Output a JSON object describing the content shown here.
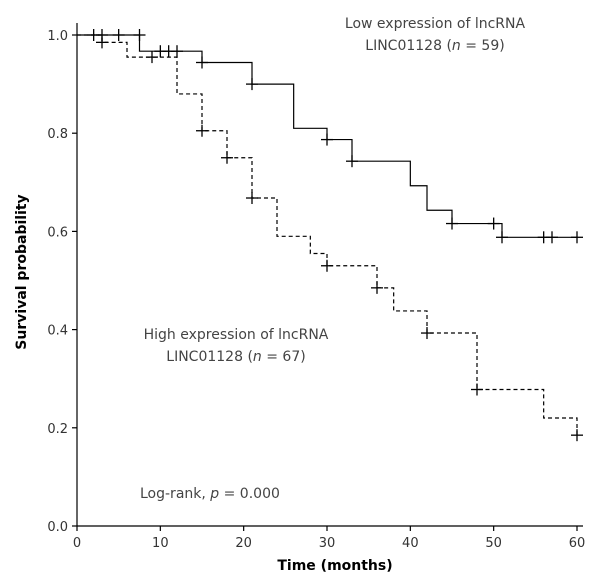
{
  "chart_data": {
    "type": "line",
    "chart_subtype": "kaplan-meier",
    "xlabel": "Time (months)",
    "ylabel": "Survival probability",
    "xlim": [
      0,
      60
    ],
    "ylim": [
      0.0,
      1.0
    ],
    "xticks": [
      0,
      10,
      20,
      30,
      40,
      50,
      60
    ],
    "yticks": [
      0.0,
      0.2,
      0.4,
      0.6,
      0.8,
      1.0
    ],
    "ytick_labels": [
      "0.0",
      "0.2",
      "0.4",
      "0.6",
      "0.8",
      "1.0"
    ],
    "grid": false,
    "series": [
      {
        "name": "Low expression of lncRNA LINC01128 (n = 59)",
        "line_style": "solid",
        "steps": [
          {
            "x": 0,
            "y": 1.0
          },
          {
            "x": 7.5,
            "y": 0.967
          },
          {
            "x": 15,
            "y": 0.944
          },
          {
            "x": 21,
            "y": 0.9
          },
          {
            "x": 26,
            "y": 0.81
          },
          {
            "x": 30,
            "y": 0.787
          },
          {
            "x": 33,
            "y": 0.743
          },
          {
            "x": 40,
            "y": 0.693
          },
          {
            "x": 42,
            "y": 0.643
          },
          {
            "x": 45,
            "y": 0.616
          },
          {
            "x": 51,
            "y": 0.588
          },
          {
            "x": 60,
            "y": 0.588
          }
        ],
        "censored": [
          {
            "x": 2,
            "y": 1.0
          },
          {
            "x": 3,
            "y": 1.0
          },
          {
            "x": 5,
            "y": 1.0
          },
          {
            "x": 7.5,
            "y": 1.0
          },
          {
            "x": 10,
            "y": 0.967
          },
          {
            "x": 11,
            "y": 0.967
          },
          {
            "x": 12,
            "y": 0.967
          },
          {
            "x": 15,
            "y": 0.944
          },
          {
            "x": 21,
            "y": 0.9
          },
          {
            "x": 30,
            "y": 0.787
          },
          {
            "x": 33,
            "y": 0.743
          },
          {
            "x": 45,
            "y": 0.616
          },
          {
            "x": 50,
            "y": 0.616
          },
          {
            "x": 51,
            "y": 0.588
          },
          {
            "x": 56,
            "y": 0.588
          },
          {
            "x": 57,
            "y": 0.588
          },
          {
            "x": 60,
            "y": 0.588
          }
        ]
      },
      {
        "name": "High expression of lncRNA LINC01128 (n = 67)",
        "line_style": "dashed",
        "steps": [
          {
            "x": 0,
            "y": 1.0
          },
          {
            "x": 3,
            "y": 0.985
          },
          {
            "x": 6,
            "y": 0.955
          },
          {
            "x": 12,
            "y": 0.88
          },
          {
            "x": 15,
            "y": 0.805
          },
          {
            "x": 18,
            "y": 0.75
          },
          {
            "x": 21,
            "y": 0.668
          },
          {
            "x": 24,
            "y": 0.59
          },
          {
            "x": 28,
            "y": 0.555
          },
          {
            "x": 30,
            "y": 0.53
          },
          {
            "x": 36,
            "y": 0.485
          },
          {
            "x": 38,
            "y": 0.438
          },
          {
            "x": 42,
            "y": 0.393
          },
          {
            "x": 48,
            "y": 0.278
          },
          {
            "x": 56,
            "y": 0.22
          },
          {
            "x": 60,
            "y": 0.185
          }
        ],
        "censored": [
          {
            "x": 3,
            "y": 0.985
          },
          {
            "x": 9,
            "y": 0.955
          },
          {
            "x": 15,
            "y": 0.805
          },
          {
            "x": 18,
            "y": 0.75
          },
          {
            "x": 21,
            "y": 0.668
          },
          {
            "x": 30,
            "y": 0.53
          },
          {
            "x": 36,
            "y": 0.485
          },
          {
            "x": 42,
            "y": 0.393
          },
          {
            "x": 48,
            "y": 0.278
          },
          {
            "x": 60,
            "y": 0.185
          }
        ]
      }
    ],
    "annotations": {
      "low_label_line1": "Low expression of lncRNA",
      "low_label_line2_prefix": "LINC01128 (",
      "low_label_n": "n",
      "low_label_line2_suffix": " = 59)",
      "high_label_line1": "High expression of lncRNA",
      "high_label_line2_prefix": "LINC01128 (",
      "high_label_n": "n",
      "high_label_line2_suffix": " = 67)",
      "logrank_prefix": "Log-rank, ",
      "logrank_p": "p",
      "logrank_suffix": " = 0.000"
    }
  }
}
